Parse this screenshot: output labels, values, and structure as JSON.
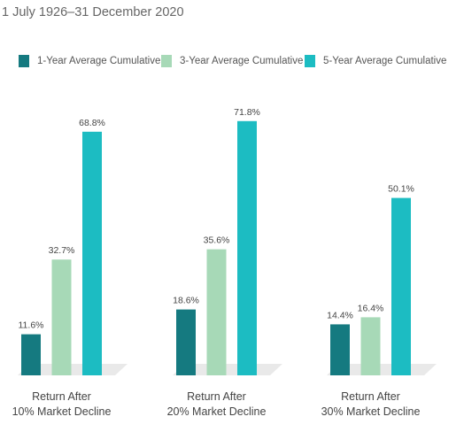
{
  "subtitle": "1 July 1926–31 December 2020",
  "legend": [
    {
      "label": "1-Year Average Cumulative",
      "color": "#157a80"
    },
    {
      "label": "3-Year Average Cumulative",
      "color": "#a7d9b7"
    },
    {
      "label": "5-Year Average Cumulative",
      "color": "#1cbcc2"
    }
  ],
  "chart_data": {
    "type": "bar",
    "title": "",
    "xlabel": "",
    "ylabel": "",
    "ylim": [
      0,
      80
    ],
    "grid": false,
    "legend_position": "top",
    "categories": [
      [
        "Return After",
        "10% Market Decline"
      ],
      [
        "Return After",
        "20% Market Decline"
      ],
      [
        "Return After",
        "30% Market Decline"
      ]
    ],
    "series": [
      {
        "name": "1-Year Average Cumulative",
        "values": [
          11.6,
          18.6,
          14.4
        ],
        "labels": [
          "11.6%",
          "18.6%",
          "14.4%"
        ],
        "color": "#157a80"
      },
      {
        "name": "3-Year Average Cumulative",
        "values": [
          32.7,
          35.6,
          16.4
        ],
        "labels": [
          "32.7%",
          "35.6%",
          "16.4%"
        ],
        "color": "#a7d9b7"
      },
      {
        "name": "5-Year Average Cumulative",
        "values": [
          68.8,
          71.8,
          50.1
        ],
        "labels": [
          "68.8%",
          "71.8%",
          "50.1%"
        ],
        "color": "#1cbcc2"
      }
    ]
  }
}
